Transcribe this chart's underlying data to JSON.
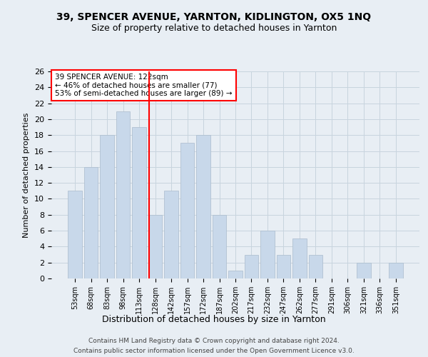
{
  "title1": "39, SPENCER AVENUE, YARNTON, KIDLINGTON, OX5 1NQ",
  "title2": "Size of property relative to detached houses in Yarnton",
  "xlabel": "Distribution of detached houses by size in Yarnton",
  "ylabel": "Number of detached properties",
  "categories": [
    "53sqm",
    "68sqm",
    "83sqm",
    "98sqm",
    "113sqm",
    "128sqm",
    "142sqm",
    "157sqm",
    "172sqm",
    "187sqm",
    "202sqm",
    "217sqm",
    "232sqm",
    "247sqm",
    "262sqm",
    "277sqm",
    "291sqm",
    "306sqm",
    "321sqm",
    "336sqm",
    "351sqm"
  ],
  "values": [
    11,
    14,
    18,
    21,
    19,
    8,
    11,
    17,
    18,
    8,
    1,
    3,
    6,
    3,
    5,
    3,
    0,
    0,
    2,
    0,
    2
  ],
  "bar_color": "#c8d8ea",
  "bar_edge_color": "#aabbcc",
  "grid_color": "#c8d4de",
  "property_line_x": 4.6,
  "property_line_color": "red",
  "annotation_text": "39 SPENCER AVENUE: 122sqm\n← 46% of detached houses are smaller (77)\n53% of semi-detached houses are larger (89) →",
  "annotation_box_color": "white",
  "annotation_box_edge_color": "red",
  "ylim": [
    0,
    26
  ],
  "yticks": [
    0,
    2,
    4,
    6,
    8,
    10,
    12,
    14,
    16,
    18,
    20,
    22,
    24,
    26
  ],
  "footer1": "Contains HM Land Registry data © Crown copyright and database right 2024.",
  "footer2": "Contains public sector information licensed under the Open Government Licence v3.0.",
  "bg_color": "#e8eef4",
  "fig_bg_color": "#e8eef4"
}
